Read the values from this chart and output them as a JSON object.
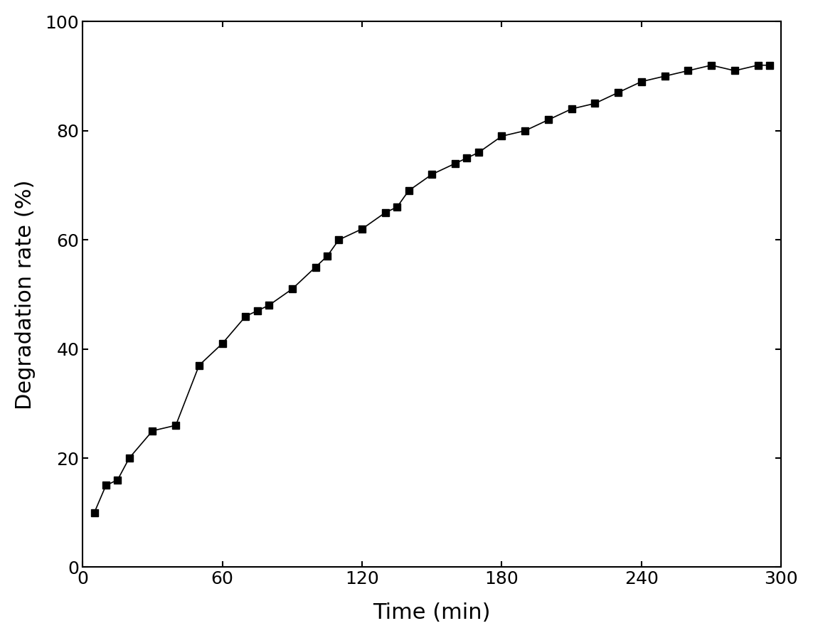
{
  "x": [
    5,
    10,
    15,
    20,
    30,
    40,
    50,
    60,
    70,
    75,
    80,
    90,
    100,
    105,
    110,
    120,
    130,
    135,
    140,
    150,
    160,
    165,
    170,
    180,
    190,
    200,
    210,
    220,
    230,
    240,
    250,
    260,
    270,
    280,
    290,
    295
  ],
  "y": [
    10,
    15,
    16,
    20,
    25,
    26,
    37,
    41,
    46,
    47,
    48,
    51,
    55,
    57,
    60,
    62,
    65,
    66,
    69,
    72,
    74,
    75,
    76,
    79,
    80,
    82,
    84,
    85,
    87,
    89,
    90,
    91,
    92,
    91,
    92,
    92
  ],
  "xlabel": "Time (min)",
  "ylabel": "Degradation rate (%)",
  "xlim": [
    0,
    300
  ],
  "ylim": [
    0,
    100
  ],
  "xticks": [
    0,
    60,
    120,
    180,
    240,
    300
  ],
  "yticks": [
    0,
    20,
    40,
    60,
    80,
    100
  ],
  "line_color": "#000000",
  "marker": "s",
  "marker_size": 7,
  "line_width": 1.2,
  "background_color": "#ffffff",
  "xlabel_fontsize": 22,
  "ylabel_fontsize": 22,
  "tick_fontsize": 18
}
